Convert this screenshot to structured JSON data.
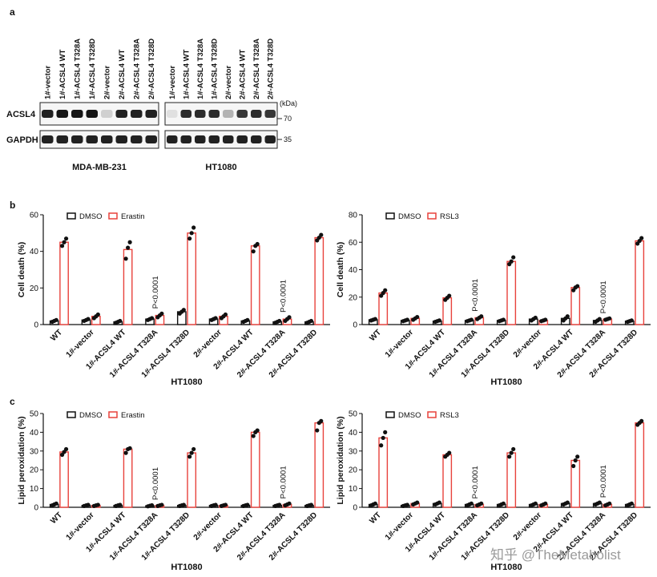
{
  "panel_labels": {
    "a": "a",
    "b": "b",
    "c": "c"
  },
  "blot": {
    "lanes": [
      "1#-vector",
      "1#-ACSL4 WT",
      "1#-ACSL4 T328A",
      "1#-ACSL4 T328D",
      "2#-vector",
      "2#-ACSL4 WT",
      "2#-ACSL4 T328A",
      "2#-ACSL4 T328D"
    ],
    "rows": [
      "ACSL4",
      "GAPDH"
    ],
    "kda_label": "(kDa)",
    "markers": [
      "70",
      "35"
    ],
    "cell_lines": [
      "MDA-MB-231",
      "HT1080"
    ],
    "acsl4_intensity": [
      [
        0.9,
        0.95,
        0.95,
        0.95,
        0.12,
        0.9,
        0.9,
        0.9
      ],
      [
        0.05,
        0.85,
        0.85,
        0.85,
        0.25,
        0.8,
        0.85,
        0.8
      ]
    ]
  },
  "chart_data": [
    {
      "type": "bar",
      "panel": "b",
      "title": "",
      "ylabel": "Cell death (%)",
      "xlabel": "HT1080",
      "ylim": [
        0,
        60
      ],
      "yticks": [
        0,
        20,
        40,
        60
      ],
      "categories": [
        "WT",
        "1#-vector",
        "1#-ACSL4 WT",
        "1#-ACSL4 T328A",
        "1#-ACSL4 T328D",
        "2#-vector",
        "2#-ACSL4 WT",
        "2#-ACSL4 T328A",
        "2#-ACSL4 T328D"
      ],
      "series": [
        {
          "name": "DMSO",
          "color": "#111111",
          "values": [
            2,
            2.5,
            1.5,
            3,
            7,
            3,
            2,
            1.5,
            1.5
          ],
          "points": [
            [
              1.5,
              2,
              2.5
            ],
            [
              2,
              2.5,
              3
            ],
            [
              1,
              1.5,
              2
            ],
            [
              2.5,
              3,
              3.5
            ],
            [
              6,
              7,
              8
            ],
            [
              2.5,
              3,
              3.5
            ],
            [
              1.5,
              2,
              2.5
            ],
            [
              1,
              1.5,
              2
            ],
            [
              1,
              1.5,
              2
            ]
          ]
        },
        {
          "name": "Erastin",
          "color": "#e8423c",
          "values": [
            45,
            4.5,
            41,
            5,
            50,
            4.5,
            43,
            3,
            47.5
          ],
          "points": [
            [
              43,
              45,
              47
            ],
            [
              3.5,
              4.5,
              5.5
            ],
            [
              36,
              42,
              45
            ],
            [
              4,
              5,
              6
            ],
            [
              47,
              50,
              53
            ],
            [
              3.5,
              4.5,
              5.5
            ],
            [
              40,
              43,
              44
            ],
            [
              2,
              3,
              4
            ],
            [
              46,
              47.5,
              49
            ]
          ]
        }
      ],
      "annotations": [
        {
          "category": "1#-ACSL4 T328A",
          "text": "P<0.0001"
        },
        {
          "category": "2#-ACSL4 T328A",
          "text": "P<0.0001"
        }
      ]
    },
    {
      "type": "bar",
      "panel": "b",
      "title": "",
      "ylabel": "Cell death (%)",
      "xlabel": "HT1080",
      "ylim": [
        0,
        80
      ],
      "yticks": [
        0,
        20,
        40,
        60,
        80
      ],
      "categories": [
        "WT",
        "1#-vector",
        "1#-ACSL4 WT",
        "1#-ACSL4 T328A",
        "1#-ACSL4 T328D",
        "2#-vector",
        "2#-ACSL4 WT",
        "2#-ACSL4 T328A",
        "2#-ACSL4 T328D"
      ],
      "series": [
        {
          "name": "DMSO",
          "color": "#111111",
          "values": [
            3.5,
            3,
            2.5,
            3,
            3,
            4,
            4.5,
            3,
            2.5
          ],
          "points": [
            [
              3,
              3.5,
              4
            ],
            [
              2.5,
              3,
              3.5
            ],
            [
              2,
              2.5,
              3
            ],
            [
              2.5,
              3,
              3.5
            ],
            [
              2.5,
              3,
              3.5
            ],
            [
              3,
              4,
              5
            ],
            [
              3,
              4.5,
              6
            ],
            [
              2,
              3,
              4
            ],
            [
              2,
              2.5,
              3
            ]
          ]
        },
        {
          "name": "RSL3",
          "color": "#e8423c",
          "values": [
            23,
            4.5,
            19.5,
            5,
            46,
            3,
            27,
            4,
            61
          ],
          "points": [
            [
              21,
              23,
              25
            ],
            [
              3.5,
              4.5,
              5.5
            ],
            [
              18,
              19.5,
              21
            ],
            [
              4,
              5,
              6
            ],
            [
              44,
              46,
              49
            ],
            [
              2.5,
              3,
              3.5
            ],
            [
              25,
              27,
              28
            ],
            [
              3.5,
              4,
              4.5
            ],
            [
              59,
              61,
              63
            ]
          ]
        }
      ],
      "annotations": [
        {
          "category": "1#-ACSL4 T328A",
          "text": "P<0.0001"
        },
        {
          "category": "2#-ACSL4 T328A",
          "text": "P<0.0001"
        }
      ]
    },
    {
      "type": "bar",
      "panel": "c",
      "title": "",
      "ylabel": "Lipid peroxidation (%)",
      "xlabel": "HT1080",
      "ylim": [
        0,
        50
      ],
      "yticks": [
        0,
        10,
        20,
        30,
        40,
        50
      ],
      "categories": [
        "WT",
        "1#-vector",
        "1#-ACSL4 WT",
        "1#-ACSL4 T328A",
        "1#-ACSL4 T328D",
        "2#-vector",
        "2#-ACSL4 WT",
        "2#-ACSL4 T328A",
        "2#-ACSL4 T328D"
      ],
      "series": [
        {
          "name": "DMSO",
          "color": "#111111",
          "values": [
            1.5,
            1,
            1,
            0.8,
            1,
            1,
            1,
            1,
            1
          ],
          "points": [
            [
              1,
              1.5,
              2
            ],
            [
              0.7,
              1,
              1.3
            ],
            [
              0.7,
              1,
              1.3
            ],
            [
              0.5,
              0.8,
              1.1
            ],
            [
              0.7,
              1,
              1.3
            ],
            [
              0.7,
              1,
              1.3
            ],
            [
              0.7,
              1,
              1.3
            ],
            [
              0.7,
              1,
              1.3
            ],
            [
              0.7,
              1,
              1.3
            ]
          ]
        },
        {
          "name": "Erastin",
          "color": "#e8423c",
          "values": [
            29.5,
            1,
            31,
            1,
            29,
            1,
            40,
            1.5,
            45
          ],
          "points": [
            [
              28,
              29.5,
              31
            ],
            [
              0.7,
              1,
              1.3
            ],
            [
              29,
              31,
              31.5
            ],
            [
              0.7,
              1,
              1.3
            ],
            [
              27,
              29,
              31
            ],
            [
              0.7,
              1,
              1.3
            ],
            [
              38,
              40,
              41
            ],
            [
              1,
              1.5,
              2
            ],
            [
              41,
              45,
              46
            ]
          ]
        }
      ],
      "annotations": [
        {
          "category": "1#-ACSL4 T328A",
          "text": "P<0.0001"
        },
        {
          "category": "2#-ACSL4 T328A",
          "text": "P<0.0001"
        }
      ]
    },
    {
      "type": "bar",
      "panel": "c",
      "title": "",
      "ylabel": "Lipid peroxidation (%)",
      "xlabel": "HT1080",
      "ylim": [
        0,
        50
      ],
      "yticks": [
        0,
        10,
        20,
        30,
        40,
        50
      ],
      "categories": [
        "WT",
        "1#-vector",
        "1#-ACSL4 WT",
        "1#-ACSL4 T328A",
        "1#-ACSL4 T328D",
        "2#-vector",
        "2#-ACSL4 WT",
        "2#-ACSL4 T328A",
        "2#-ACSL4 T328D"
      ],
      "series": [
        {
          "name": "DMSO",
          "color": "#111111",
          "values": [
            1.5,
            1,
            2,
            1.5,
            1.5,
            1.5,
            2,
            2,
            1.5
          ],
          "points": [
            [
              1,
              1.5,
              2
            ],
            [
              0.7,
              1,
              1.3
            ],
            [
              1.5,
              2,
              2.5
            ],
            [
              1,
              1.5,
              2
            ],
            [
              1,
              1.5,
              2
            ],
            [
              1,
              1.5,
              2
            ],
            [
              1.5,
              2,
              2.5
            ],
            [
              1.5,
              2,
              2.5
            ],
            [
              1,
              1.5,
              2
            ]
          ]
        },
        {
          "name": "RSL3",
          "color": "#e8423c",
          "values": [
            37,
            2,
            28,
            1.5,
            29,
            1.5,
            25,
            1.5,
            45
          ],
          "points": [
            [
              33,
              37,
              40
            ],
            [
              1.5,
              2,
              2.5
            ],
            [
              27,
              28,
              29
            ],
            [
              1,
              1.5,
              2
            ],
            [
              27,
              29,
              31
            ],
            [
              1,
              1.5,
              2
            ],
            [
              22,
              25,
              27
            ],
            [
              1,
              1.5,
              2
            ],
            [
              44,
              45,
              46
            ]
          ]
        }
      ],
      "annotations": [
        {
          "category": "1#-ACSL4 T328A",
          "text": "P<0.0001"
        },
        {
          "category": "2#-ACSL4 T328A",
          "text": "P<0.0001"
        }
      ]
    }
  ],
  "watermark": "知乎 @TheMetabolist"
}
